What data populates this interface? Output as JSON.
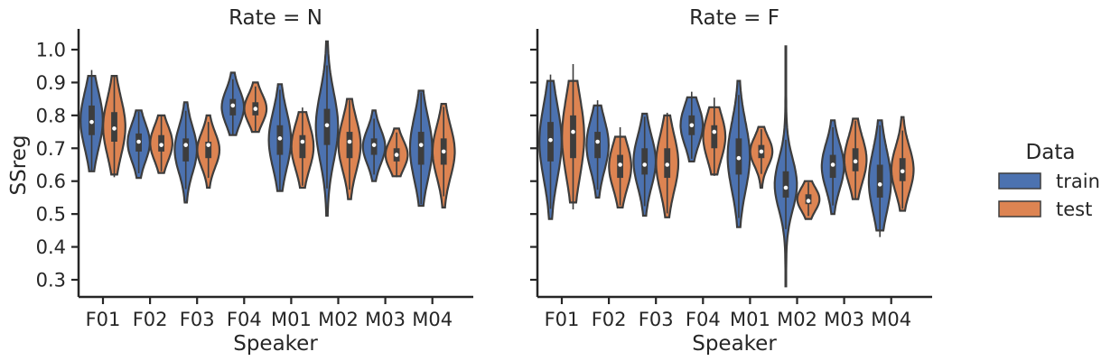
{
  "chart_data": {
    "type": "violin",
    "xlabel": "Speaker",
    "ylabel": "SSreg",
    "ylim": [
      0.24,
      1.065
    ],
    "yticks": [
      "0.3",
      "0.4",
      "0.5",
      "0.6",
      "0.7",
      "0.8",
      "0.9",
      "1.0"
    ],
    "categories": [
      "F01",
      "F02",
      "F03",
      "F04",
      "M01",
      "M02",
      "M03",
      "M04"
    ],
    "legend": {
      "title": "Data",
      "placement": "right",
      "entries": [
        {
          "label": "train",
          "color": "#4c72b0"
        },
        {
          "label": "test",
          "color": "#dd8452"
        }
      ]
    },
    "panels": [
      {
        "title": "Rate = N",
        "series": [
          {
            "name": "train",
            "color": "#4c72b0",
            "violins": [
              {
                "min": 0.63,
                "max": 0.92,
                "q1": 0.74,
                "median": 0.78,
                "q3": 0.83
              },
              {
                "min": 0.61,
                "max": 0.815,
                "q1": 0.69,
                "median": 0.72,
                "q3": 0.745
              },
              {
                "min": 0.535,
                "max": 0.84,
                "q1": 0.66,
                "median": 0.71,
                "q3": 0.73
              },
              {
                "min": 0.74,
                "max": 0.93,
                "q1": 0.8,
                "median": 0.83,
                "q3": 0.85
              },
              {
                "min": 0.57,
                "max": 0.895,
                "q1": 0.68,
                "median": 0.73,
                "q3": 0.77
              },
              {
                "min": 0.495,
                "max": 1.025,
                "q1": 0.71,
                "median": 0.77,
                "q3": 0.82
              },
              {
                "min": 0.6,
                "max": 0.815,
                "q1": 0.68,
                "median": 0.71,
                "q3": 0.73
              },
              {
                "min": 0.525,
                "max": 0.875,
                "q1": 0.65,
                "median": 0.71,
                "q3": 0.75
              }
            ]
          },
          {
            "name": "test",
            "color": "#dd8452",
            "violins": [
              {
                "min": 0.62,
                "max": 0.92,
                "q1": 0.72,
                "median": 0.76,
                "q3": 0.81
              },
              {
                "min": 0.625,
                "max": 0.8,
                "q1": 0.69,
                "median": 0.71,
                "q3": 0.74
              },
              {
                "min": 0.58,
                "max": 0.8,
                "q1": 0.67,
                "median": 0.71,
                "q3": 0.72
              },
              {
                "min": 0.75,
                "max": 0.9,
                "q1": 0.8,
                "median": 0.82,
                "q3": 0.84
              },
              {
                "min": 0.58,
                "max": 0.81,
                "q1": 0.67,
                "median": 0.72,
                "q3": 0.74
              },
              {
                "min": 0.545,
                "max": 0.85,
                "q1": 0.67,
                "median": 0.72,
                "q3": 0.75
              },
              {
                "min": 0.615,
                "max": 0.76,
                "q1": 0.66,
                "median": 0.68,
                "q3": 0.7
              },
              {
                "min": 0.52,
                "max": 0.835,
                "q1": 0.65,
                "median": 0.69,
                "q3": 0.73
              }
            ]
          }
        ]
      },
      {
        "title": "Rate = F",
        "series": [
          {
            "name": "train",
            "color": "#4c72b0",
            "violins": [
              {
                "min": 0.485,
                "max": 0.905,
                "q1": 0.66,
                "median": 0.725,
                "q3": 0.78
              },
              {
                "min": 0.55,
                "max": 0.83,
                "q1": 0.67,
                "median": 0.72,
                "q3": 0.75
              },
              {
                "min": 0.495,
                "max": 0.805,
                "q1": 0.62,
                "median": 0.65,
                "q3": 0.7
              },
              {
                "min": 0.66,
                "max": 0.855,
                "q1": 0.74,
                "median": 0.77,
                "q3": 0.8
              },
              {
                "min": 0.46,
                "max": 0.905,
                "q1": 0.62,
                "median": 0.67,
                "q3": 0.73
              },
              {
                "min": 0.28,
                "max": 1.01,
                "q1": 0.55,
                "median": 0.58,
                "q3": 0.63
              },
              {
                "min": 0.5,
                "max": 0.785,
                "q1": 0.61,
                "median": 0.65,
                "q3": 0.68
              },
              {
                "min": 0.45,
                "max": 0.785,
                "q1": 0.55,
                "median": 0.59,
                "q3": 0.65
              }
            ]
          },
          {
            "name": "test",
            "color": "#dd8452",
            "violins": [
              {
                "min": 0.535,
                "max": 0.905,
                "q1": 0.67,
                "median": 0.75,
                "q3": 0.8
              },
              {
                "min": 0.52,
                "max": 0.735,
                "q1": 0.61,
                "median": 0.65,
                "q3": 0.68
              },
              {
                "min": 0.49,
                "max": 0.8,
                "q1": 0.61,
                "median": 0.65,
                "q3": 0.7
              },
              {
                "min": 0.62,
                "max": 0.825,
                "q1": 0.7,
                "median": 0.75,
                "q3": 0.77
              },
              {
                "min": 0.58,
                "max": 0.765,
                "q1": 0.67,
                "median": 0.69,
                "q3": 0.71
              },
              {
                "min": 0.485,
                "max": 0.6,
                "q1": 0.53,
                "median": 0.54,
                "q3": 0.56
              },
              {
                "min": 0.545,
                "max": 0.79,
                "q1": 0.63,
                "median": 0.66,
                "q3": 0.7
              },
              {
                "min": 0.51,
                "max": 0.795,
                "q1": 0.6,
                "median": 0.63,
                "q3": 0.67
              }
            ]
          }
        ]
      }
    ]
  }
}
